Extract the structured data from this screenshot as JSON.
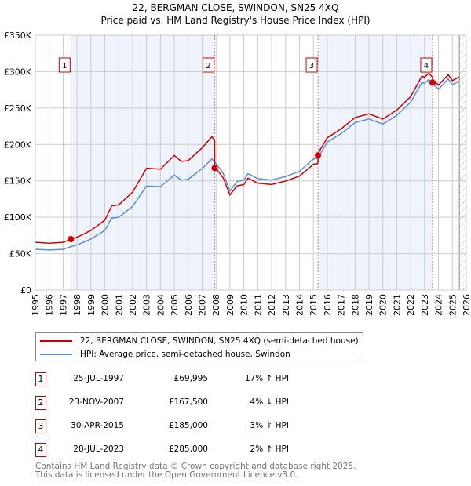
{
  "chart_data": {
    "type": "line",
    "title": "22, BERGMAN CLOSE, SWINDON, SN25 4XQ",
    "subtitle": "Price paid vs. HM Land Registry's House Price Index (HPI)",
    "xlim": [
      1995,
      2026
    ],
    "ylim": [
      0,
      350000
    ],
    "x_ticks": [
      "1995",
      "1996",
      "1997",
      "1998",
      "1999",
      "2000",
      "2001",
      "2002",
      "2003",
      "2004",
      "2005",
      "2006",
      "2007",
      "2008",
      "2009",
      "2010",
      "2011",
      "2012",
      "2013",
      "2014",
      "2015",
      "2016",
      "2017",
      "2018",
      "2019",
      "2020",
      "2021",
      "2022",
      "2023",
      "2024",
      "2025",
      "2026"
    ],
    "y_ticks": [
      {
        "v": 0,
        "label": "£0"
      },
      {
        "v": 50000,
        "label": "£50K"
      },
      {
        "v": 100000,
        "label": "£100K"
      },
      {
        "v": 150000,
        "label": "£150K"
      },
      {
        "v": 200000,
        "label": "£200K"
      },
      {
        "v": 250000,
        "label": "£250K"
      },
      {
        "v": 300000,
        "label": "£300K"
      },
      {
        "v": 350000,
        "label": "£350K"
      }
    ],
    "grid": true,
    "forecast_hatch_from": 2025.5,
    "series": [
      {
        "name": "HPI: Average price, semi-detached house, Swindon",
        "color": "#5b8fd6",
        "x": [
          1995,
          1996,
          1997,
          1997.6,
          1998,
          1999,
          2000,
          2000.5,
          2001,
          2002,
          2003,
          2004,
          2005,
          2005.5,
          2006,
          2007,
          2007.7,
          2008,
          2008.5,
          2009,
          2009.5,
          2010,
          2010.3,
          2011,
          2012,
          2013,
          2014,
          2015,
          2015.3,
          2016,
          2017,
          2018,
          2019,
          2020,
          2021,
          2022,
          2022.8,
          2023,
          2023.3,
          2024,
          2024.7,
          2025,
          2025.5
        ],
        "values": [
          56000,
          55000,
          56000,
          60000,
          62000,
          70000,
          82000,
          99000,
          100000,
          115000,
          143000,
          142000,
          158000,
          151000,
          152000,
          167000,
          180000,
          174000,
          161000,
          136000,
          149000,
          151000,
          160000,
          153000,
          151000,
          156000,
          163000,
          180000,
          181000,
          203000,
          215000,
          230000,
          235000,
          228000,
          240000,
          258000,
          285000,
          284000,
          289000,
          276000,
          290000,
          282000,
          287000
        ]
      },
      {
        "name": "22, BERGMAN CLOSE, SWINDON, SN25 4XQ (semi-detached house)",
        "color": "#cc0000",
        "ratio_segments": [
          {
            "from": 1995,
            "ratio": 1.17
          },
          {
            "from": 2007.9,
            "ratio": 0.96
          },
          {
            "from": 2015.33,
            "ratio": 1.03
          },
          {
            "from": 2023.57,
            "ratio": 1.02
          }
        ]
      }
    ],
    "sales": [
      {
        "n": "1",
        "x": 1997.56,
        "value": 69995,
        "date": "25-JUL-1997",
        "price": "£69,995",
        "hpi": "17% ↑ HPI"
      },
      {
        "n": "2",
        "x": 2007.9,
        "value": 167500,
        "date": "23-NOV-2007",
        "price": "£167,500",
        "hpi": "4% ↓ HPI"
      },
      {
        "n": "3",
        "x": 2015.33,
        "value": 185000,
        "date": "30-APR-2015",
        "price": "£185,000",
        "hpi": "3% ↑ HPI"
      },
      {
        "n": "4",
        "x": 2023.57,
        "value": 285000,
        "date": "28-JUL-2023",
        "price": "£285,000",
        "hpi": "2% ↑ HPI"
      }
    ],
    "legend_position": "below"
  },
  "legend": {
    "property": "22, BERGMAN CLOSE, SWINDON, SN25 4XQ (semi-detached house)",
    "hpi": "HPI: Average price, semi-detached house, Swindon"
  },
  "footer": {
    "line1": "Contains HM Land Registry data © Crown copyright and database right 2025.",
    "line2": "This data is licensed under the Open Government Licence v3.0."
  },
  "colors": {
    "property": "#cc0000",
    "hpi": "#5b8fd6",
    "shade": "#eef3fc"
  }
}
